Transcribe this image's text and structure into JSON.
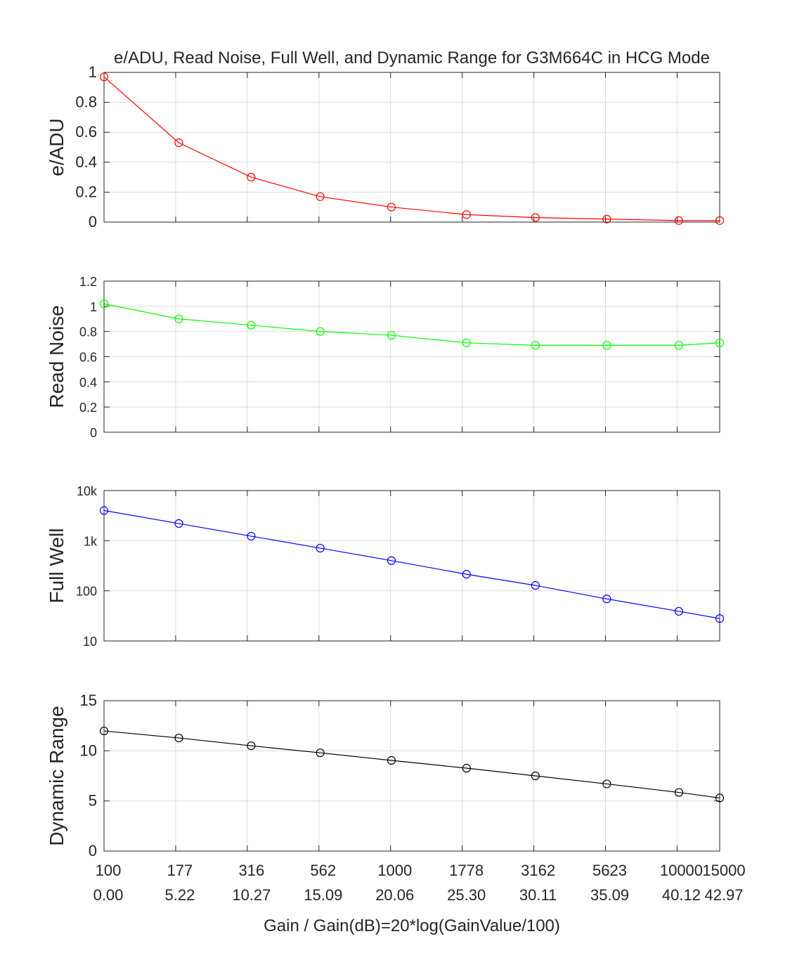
{
  "chart_data": {
    "type": "line",
    "title": "e/ADU, Read Noise, Full Well, and Dynamic Range for G3M664C in HCG Mode",
    "xlabel": "Gain / Gain(dB)=20*log(GainValue/100)",
    "x_gain": [
      100,
      177,
      316,
      562,
      1000,
      1778,
      3162,
      5623,
      10000,
      15000
    ],
    "x_db": [
      0.0,
      5.22,
      10.27,
      15.09,
      20.06,
      25.3,
      30.11,
      35.09,
      40.12,
      42.97
    ],
    "x_tick_positions_db": [
      0,
      5,
      10,
      15,
      20,
      25,
      30,
      35,
      40,
      42.97
    ],
    "x_tick_labels_gain": [
      "100",
      "177",
      "316",
      "562",
      "1000",
      "1778",
      "3162",
      "5623",
      "10000",
      "15000"
    ],
    "x_tick_labels_db": [
      "0.00",
      "5.22",
      "10.27",
      "15.09",
      "20.06",
      "25.30",
      "30.11",
      "35.09",
      "40.12",
      "42.97"
    ],
    "xlim": [
      0,
      42.97
    ],
    "grid": true,
    "panels": [
      {
        "ylabel": "e/ADU",
        "color": "#ff0000",
        "scale": "linear",
        "ylim": [
          0,
          1
        ],
        "yticks": [
          0,
          0.2,
          0.4,
          0.6,
          0.8,
          1
        ],
        "ytick_labels": [
          "0",
          "0.2",
          "0.4",
          "0.6",
          "0.8",
          "1"
        ],
        "values": [
          0.97,
          0.53,
          0.3,
          0.17,
          0.1,
          0.05,
          0.03,
          0.02,
          0.01,
          0.01
        ]
      },
      {
        "ylabel": "Read Noise",
        "color": "#00ff00",
        "scale": "linear",
        "ylim": [
          0,
          1.2
        ],
        "yticks": [
          0,
          0.2,
          0.4,
          0.6,
          0.8,
          1,
          1.2
        ],
        "ytick_labels": [
          "0",
          "0.2",
          "0.4",
          "0.6",
          "0.8",
          "1",
          "1.2"
        ],
        "values": [
          1.02,
          0.9,
          0.85,
          0.8,
          0.77,
          0.71,
          0.69,
          0.69,
          0.69,
          0.71
        ]
      },
      {
        "ylabel": "Full Well",
        "color": "#0000ff",
        "scale": "log",
        "ylim": [
          10,
          10000
        ],
        "yticks": [
          10,
          100,
          1000,
          10000
        ],
        "ytick_labels": [
          "10",
          "100",
          "1k",
          "10k"
        ],
        "values": [
          4000,
          2200,
          1230,
          710,
          400,
          214,
          128,
          69,
          39,
          28
        ]
      },
      {
        "ylabel": "Dynamic Range",
        "color": "#000000",
        "scale": "linear",
        "ylim": [
          0,
          15
        ],
        "yticks": [
          0,
          5,
          10,
          15
        ],
        "ytick_labels": [
          "0",
          "5",
          "10",
          "15"
        ],
        "values": [
          11.98,
          11.28,
          10.5,
          9.8,
          9.04,
          8.27,
          7.5,
          6.7,
          5.85,
          5.3
        ]
      }
    ]
  }
}
